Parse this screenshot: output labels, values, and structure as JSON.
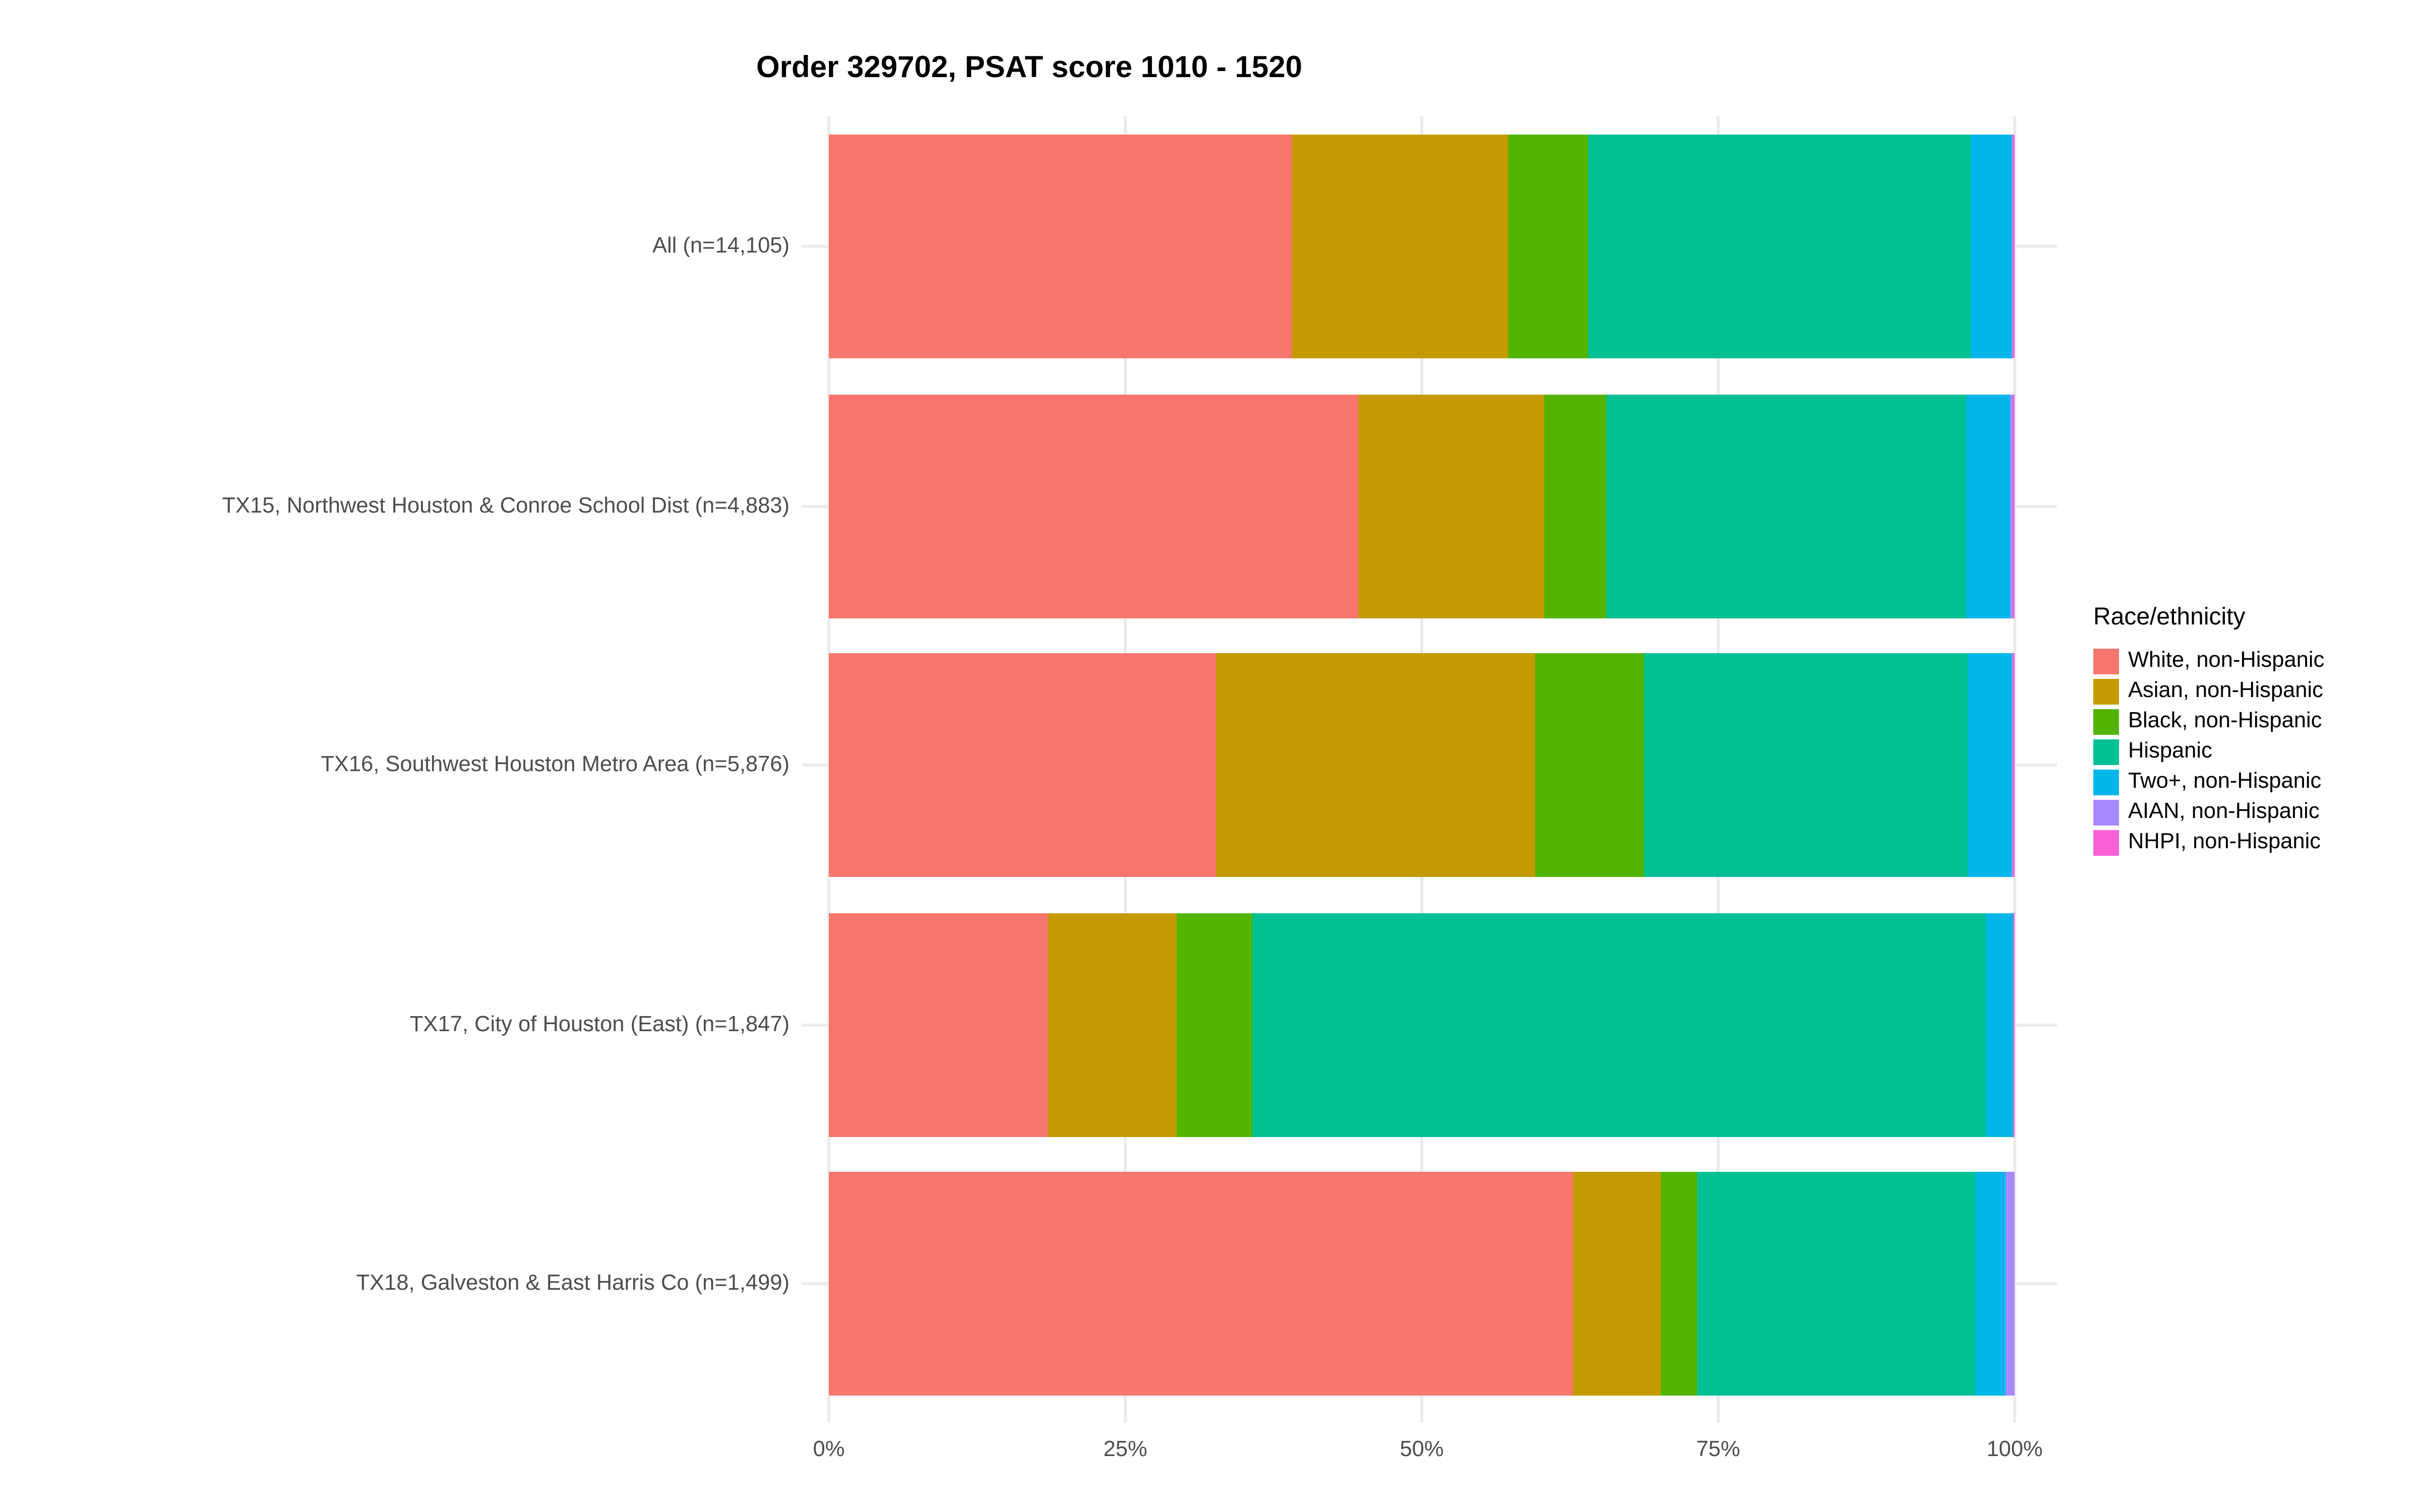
{
  "chart_data": {
    "type": "bar",
    "orientation": "horizontal",
    "stacked": true,
    "normalized": "percent_fill",
    "title": "Order 329702, PSAT score 1010 - 1520",
    "categories": [
      "All (n=14,105)",
      "TX15, Northwest Houston & Conroe School Dist (n=4,883)",
      "TX16, Southwest Houston Metro Area (n=5,876)",
      "TX17, City of Houston (East) (n=1,847)",
      "TX18, Galveston & East Harris Co (n=1,499)"
    ],
    "series": [
      {
        "name": "White, non-Hispanic",
        "color": "#F8766D",
        "values": [
          39.0,
          44.6,
          32.7,
          18.5,
          62.7
        ]
      },
      {
        "name": "Asian, non-Hispanic",
        "color": "#C49A00",
        "values": [
          18.3,
          15.7,
          26.9,
          10.9,
          7.4
        ]
      },
      {
        "name": "Black, non-Hispanic",
        "color": "#53B400",
        "values": [
          6.7,
          5.2,
          9.2,
          6.3,
          3.1
        ]
      },
      {
        "name": "Hispanic",
        "color": "#00C094",
        "values": [
          32.3,
          30.4,
          27.2,
          61.9,
          23.5
        ]
      },
      {
        "name": "Two+, non-Hispanic",
        "color": "#00B6EB",
        "values": [
          3.4,
          3.7,
          3.7,
          2.3,
          2.6
        ]
      },
      {
        "name": "AIAN, non-Hispanic",
        "color": "#A58AFF",
        "values": [
          0.15,
          0.25,
          0.2,
          0.0,
          0.7
        ]
      },
      {
        "name": "NHPI, non-Hispanic",
        "color": "#FB61D7",
        "values": [
          0.15,
          0.15,
          0.1,
          0.1,
          0.0
        ]
      }
    ],
    "x_axis": {
      "tick_labels": [
        "0%",
        "25%",
        "50%",
        "75%",
        "100%"
      ],
      "tick_values": [
        0,
        25,
        50,
        75,
        100
      ],
      "range": [
        0,
        100
      ]
    },
    "legend": {
      "title": "Race/ethnicity",
      "position": "right"
    },
    "grid": true,
    "grid_color": "#EBEBEB",
    "axis_text_color": "#4D4D4D",
    "background": "#FFFFFF"
  }
}
